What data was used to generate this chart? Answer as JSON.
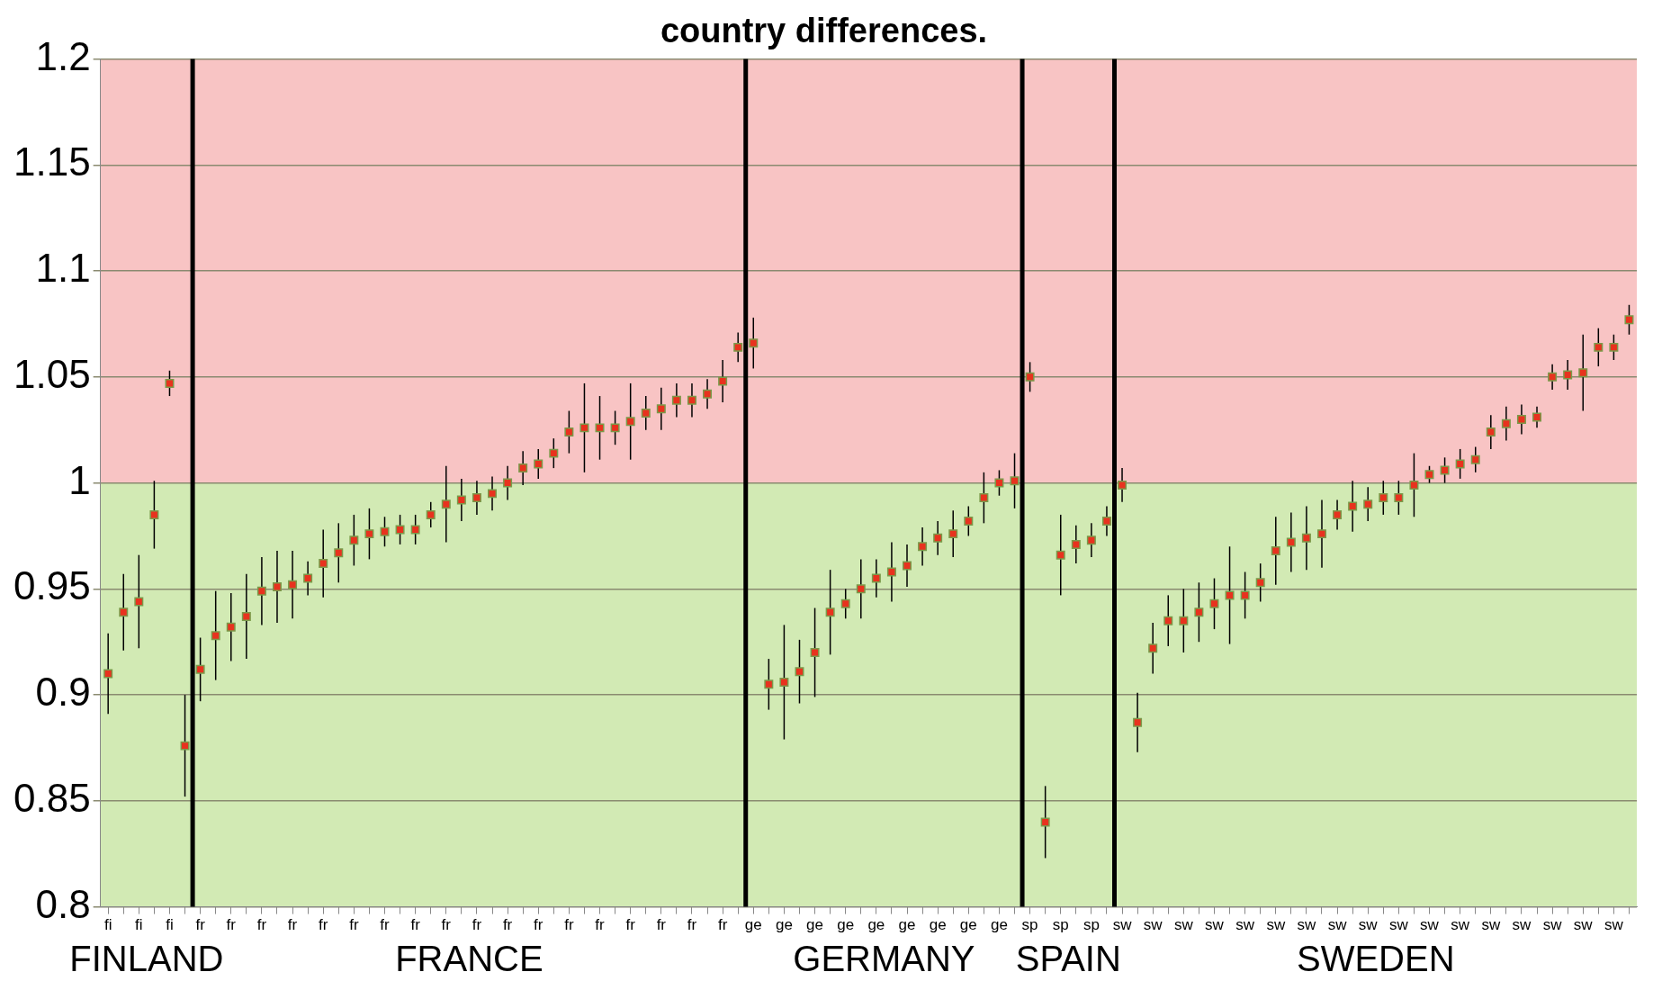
{
  "chart_data": {
    "type": "scatter",
    "title": "country differences.",
    "categories": [
      "fi",
      null,
      "fi",
      null,
      "fi",
      null,
      "fr",
      null,
      "fr",
      null,
      "fr",
      null,
      "fr",
      null,
      "fr",
      null,
      "fr",
      null,
      "fr",
      null,
      "fr",
      null,
      "fr",
      null,
      "fr",
      null,
      "fr",
      null,
      "fr",
      null,
      "fr",
      null,
      "fr",
      null,
      "fr",
      null,
      "fr",
      null,
      "fr",
      null,
      "fr",
      null,
      "ge",
      null,
      "ge",
      null,
      "ge",
      null,
      "ge",
      null,
      "ge",
      null,
      "ge",
      null,
      "ge",
      null,
      "ge",
      null,
      "ge",
      null,
      "sp",
      null,
      "sp",
      null,
      "sp",
      null,
      "sw",
      null,
      "sw",
      null,
      "sw",
      null,
      "sw",
      null,
      "sw",
      null,
      "sw",
      null,
      "sw",
      null,
      "sw",
      null,
      "sw",
      null,
      "sw",
      null,
      "sw",
      null,
      "sw",
      null,
      "sw",
      null,
      "sw",
      null,
      "sw",
      null,
      "sw",
      null,
      "sw",
      null
    ],
    "series": [
      {
        "color": "#e8321e",
        "values": [
          0.91,
          0.939,
          0.944,
          0.985,
          1.047,
          0.876,
          0.912,
          0.928,
          0.932,
          0.937,
          0.949,
          0.951,
          0.952,
          0.955,
          0.962,
          0.967,
          0.973,
          0.976,
          0.977,
          0.978,
          0.978,
          0.985,
          0.99,
          0.992,
          0.993,
          0.995,
          1.0,
          1.007,
          1.009,
          1.014,
          1.024,
          1.026,
          1.026,
          1.026,
          1.029,
          1.033,
          1.035,
          1.039,
          1.039,
          1.042,
          1.048,
          1.064,
          1.066,
          0.905,
          0.906,
          0.911,
          0.92,
          0.939,
          0.943,
          0.95,
          0.955,
          0.958,
          0.961,
          0.97,
          0.974,
          0.976,
          0.982,
          0.993,
          1.0,
          1.001,
          1.05,
          0.84,
          0.966,
          0.971,
          0.973,
          0.982,
          0.999,
          0.887,
          0.922,
          0.935,
          0.935,
          0.939,
          0.943,
          0.947,
          0.947,
          0.953,
          0.968,
          0.972,
          0.974,
          0.976,
          0.985,
          0.989,
          0.99,
          0.993,
          0.993,
          0.999,
          1.004,
          1.006,
          1.009,
          1.011,
          1.024,
          1.028,
          1.03,
          1.031,
          1.05,
          1.051,
          1.052,
          1.064,
          1.064,
          1.077
        ],
        "errors": [
          0.019,
          0.018,
          0.022,
          0.016,
          0.006,
          0.024,
          0.015,
          0.021,
          0.016,
          0.02,
          0.016,
          0.017,
          0.016,
          0.008,
          0.016,
          0.014,
          0.012,
          0.012,
          0.007,
          0.007,
          0.007,
          0.006,
          0.018,
          0.01,
          0.008,
          0.008,
          0.008,
          0.008,
          0.007,
          0.007,
          0.01,
          0.021,
          0.015,
          0.008,
          0.018,
          0.008,
          0.01,
          0.008,
          0.008,
          0.007,
          0.01,
          0.007,
          0.012,
          0.012,
          0.027,
          0.015,
          0.021,
          0.02,
          0.007,
          0.014,
          0.009,
          0.014,
          0.01,
          0.009,
          0.008,
          0.011,
          0.007,
          0.012,
          0.006,
          0.013,
          0.007,
          0.017,
          0.019,
          0.009,
          0.008,
          0.007,
          0.008,
          0.014,
          0.012,
          0.012,
          0.015,
          0.014,
          0.012,
          0.023,
          0.011,
          0.009,
          0.016,
          0.014,
          0.015,
          0.016,
          0.007,
          0.012,
          0.008,
          0.008,
          0.008,
          0.015,
          0.004,
          0.006,
          0.007,
          0.006,
          0.008,
          0.008,
          0.007,
          0.005,
          0.006,
          0.007,
          0.018,
          0.009,
          0.006,
          0.007
        ]
      }
    ],
    "ylim": [
      0.8,
      1.2
    ],
    "yticks": [
      0.8,
      0.85,
      0.9,
      0.95,
      1,
      1.05,
      1.1,
      1.15,
      1.2
    ],
    "grid": "y",
    "marker": "square",
    "bands": [
      {
        "axis": "y",
        "from": 1,
        "to": 1.2,
        "color": "#f8c4c4"
      },
      {
        "axis": "y",
        "from": 0.8,
        "to": 1,
        "color": "#d2eab4"
      }
    ],
    "annotations": [
      "FINLAND",
      "FRANCE",
      "GERMANY",
      "SPAIN",
      "SWEDEN"
    ]
  }
}
